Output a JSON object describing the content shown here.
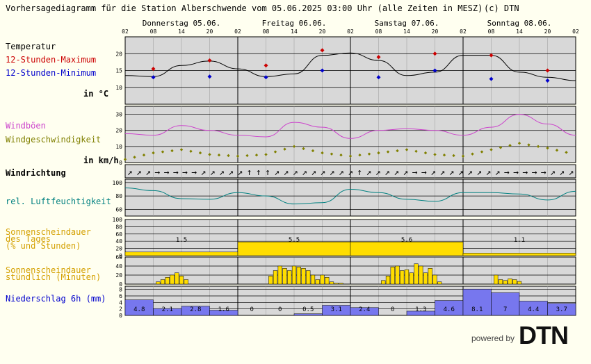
{
  "header": {
    "title": "Vorhersagediagramm für die Station Alberschwende vom 05.06.2025 03:00 Uhr (alle Zeiten in MESZ)",
    "copyright": "(c) DTN"
  },
  "days": [
    "Donnerstag 05.06.",
    "Freitag 06.06.",
    "Samstag 07.06.",
    "Sonntag 08.06."
  ],
  "hour_ticks": [
    "02",
    "08",
    "14",
    "20",
    "02",
    "08",
    "14",
    "20",
    "02",
    "08",
    "14",
    "20",
    "02",
    "08",
    "14",
    "20",
    "02"
  ],
  "labels": {
    "temp": "Temperatur",
    "tmax": "12-Stunden-Maximum",
    "tmin": "12-Stunden-Minimum",
    "temp_unit": "in °C",
    "gusts": "Windböen",
    "wind": "Windgeschwindigkeit",
    "wind_unit": "in km/h",
    "winddir": "Windrichtung",
    "rh": "rel. Luftfeuchtigkeit",
    "sun_day_1": "Sonnenscheindauer",
    "sun_day_2": "des Tages",
    "sun_day_3": "(% und Stunden)",
    "sun_hour_1": "Sonnenscheindauer",
    "sun_hour_2": "stündlich (Minuten)",
    "precip": "Niederschlag 6h (mm)"
  },
  "colors": {
    "bg": "#fffff0",
    "panel": "#d8d8d8",
    "temp": "#000000",
    "tmax": "#cc0000",
    "tmin": "#0000cc",
    "gusts": "#cc44cc",
    "wind": "#808000",
    "rh": "#008080",
    "sun": "#ffdd00",
    "precip": "#7777ee",
    "sunlabel": "#d4a000"
  },
  "branding": {
    "powered_by": "powered by",
    "logo": "DTN"
  },
  "chart_data": [
    {
      "type": "line",
      "name": "temperature",
      "ylim": [
        5,
        25
      ],
      "yticks": [
        10,
        15,
        20
      ],
      "x_hours": [
        0,
        6,
        12,
        18,
        24,
        30,
        36,
        42,
        48,
        54,
        60,
        66,
        72,
        78,
        84,
        90,
        96
      ],
      "values": [
        13.5,
        13.2,
        16.5,
        17.8,
        15.5,
        13.2,
        14.0,
        19.5,
        20.2,
        18.0,
        13.5,
        14.5,
        19.5,
        19.5,
        14.5,
        13.0,
        12.0
      ],
      "tmax": [
        {
          "x_hour": 6,
          "value": 15.5
        },
        {
          "x_hour": 18,
          "value": 18.0
        },
        {
          "x_hour": 30,
          "value": 16.5
        },
        {
          "x_hour": 42,
          "value": 21.0
        },
        {
          "x_hour": 54,
          "value": 19.0
        },
        {
          "x_hour": 66,
          "value": 20.0
        },
        {
          "x_hour": 78,
          "value": 19.5
        },
        {
          "x_hour": 90,
          "value": 15.0
        }
      ],
      "tmin": [
        {
          "x_hour": 6,
          "value": 13.0
        },
        {
          "x_hour": 18,
          "value": 13.2
        },
        {
          "x_hour": 30,
          "value": 13.0
        },
        {
          "x_hour": 42,
          "value": 15.0
        },
        {
          "x_hour": 54,
          "value": 13.0
        },
        {
          "x_hour": 66,
          "value": 15.0
        },
        {
          "x_hour": 78,
          "value": 12.5
        },
        {
          "x_hour": 90,
          "value": 12.0
        }
      ]
    },
    {
      "type": "line",
      "name": "wind",
      "ylim": [
        0,
        35
      ],
      "yticks": [
        0,
        10,
        20,
        30
      ],
      "x_hours": [
        0,
        6,
        12,
        18,
        24,
        30,
        36,
        42,
        48,
        54,
        60,
        66,
        72,
        78,
        84,
        90,
        96
      ],
      "gusts": [
        18,
        17,
        23,
        20,
        17,
        16,
        25,
        22,
        15,
        20,
        21,
        20,
        17,
        22,
        30,
        24,
        17
      ],
      "wind": [
        2,
        6,
        8,
        5,
        4,
        5,
        10,
        6,
        4,
        6,
        8,
        5,
        4,
        8,
        12,
        9,
        5
      ]
    },
    {
      "type": "table",
      "name": "wind_direction",
      "arrows": [
        "↗",
        "↗",
        "↗",
        "→",
        "→",
        "→",
        "→",
        "→",
        "↗",
        "↗",
        "↗",
        "↗",
        "↗",
        "↑",
        "↑",
        "↑",
        "↗",
        "↗",
        "↗",
        "↗",
        "↗",
        "↗",
        "↗",
        "↗",
        "↗",
        "↑",
        "↗",
        "↗",
        "↗",
        "↗",
        "↗",
        "→",
        "→",
        "↗",
        "↗",
        "↗",
        "↗",
        "↗",
        "↗",
        "↗",
        "↗",
        "→",
        "→",
        "→",
        "→",
        "→",
        "↗",
        "↗",
        "↗"
      ]
    },
    {
      "type": "line",
      "name": "humidity",
      "ylim": [
        50,
        105
      ],
      "yticks": [
        60,
        80,
        100
      ],
      "x_hours": [
        0,
        6,
        12,
        18,
        24,
        30,
        36,
        42,
        48,
        54,
        60,
        66,
        72,
        78,
        84,
        90,
        96
      ],
      "values": [
        92,
        88,
        76,
        75,
        85,
        80,
        68,
        70,
        90,
        85,
        75,
        72,
        85,
        85,
        83,
        74,
        87
      ]
    },
    {
      "type": "bar",
      "name": "sunshine_daily",
      "ylim": [
        0,
        100
      ],
      "yticks": [
        0,
        20,
        40,
        60,
        80,
        100
      ],
      "categories": [
        "Donnerstag 05.06.",
        "Freitag 06.06.",
        "Samstag 07.06.",
        "Sonntag 08.06."
      ],
      "hours": [
        "1.5",
        "5.5",
        "5.6",
        "1.1"
      ],
      "percent": [
        10,
        38,
        38,
        7
      ]
    },
    {
      "type": "bar",
      "name": "sunshine_hourly",
      "ylim": [
        0,
        60
      ],
      "yticks": [
        0,
        20,
        40,
        60
      ],
      "x_hours": [
        7,
        8,
        9,
        10,
        11,
        12,
        13,
        31,
        32,
        33,
        34,
        35,
        36,
        37,
        38,
        39,
        40,
        41,
        42,
        43,
        44,
        45,
        46,
        55,
        56,
        57,
        58,
        59,
        60,
        61,
        62,
        63,
        64,
        65,
        66,
        67,
        79,
        80,
        81,
        82,
        83,
        84
      ],
      "minutes": [
        5,
        10,
        15,
        20,
        25,
        18,
        10,
        18,
        30,
        40,
        35,
        30,
        40,
        38,
        35,
        30,
        20,
        10,
        20,
        15,
        5,
        2,
        2,
        8,
        18,
        38,
        40,
        30,
        32,
        25,
        45,
        40,
        25,
        35,
        20,
        5,
        20,
        10,
        8,
        12,
        10,
        6
      ]
    },
    {
      "type": "bar",
      "name": "precipitation_6h",
      "ylim": [
        0,
        9
      ],
      "yticks": [
        0,
        2,
        4,
        6,
        8
      ],
      "values": [
        4.8,
        2.1,
        2.8,
        1.6,
        0,
        0,
        0.5,
        3.1,
        2.4,
        0,
        1.3,
        4.6,
        8.1,
        7,
        4.4,
        3.7
      ],
      "labels": [
        "4.8",
        "2.1",
        "2.8",
        "1.6",
        "0",
        "0",
        "0.5",
        "3.1",
        "2.4",
        "0",
        "1.3",
        "4.6",
        "8.1",
        "7",
        "4.4",
        "3.7"
      ]
    }
  ]
}
